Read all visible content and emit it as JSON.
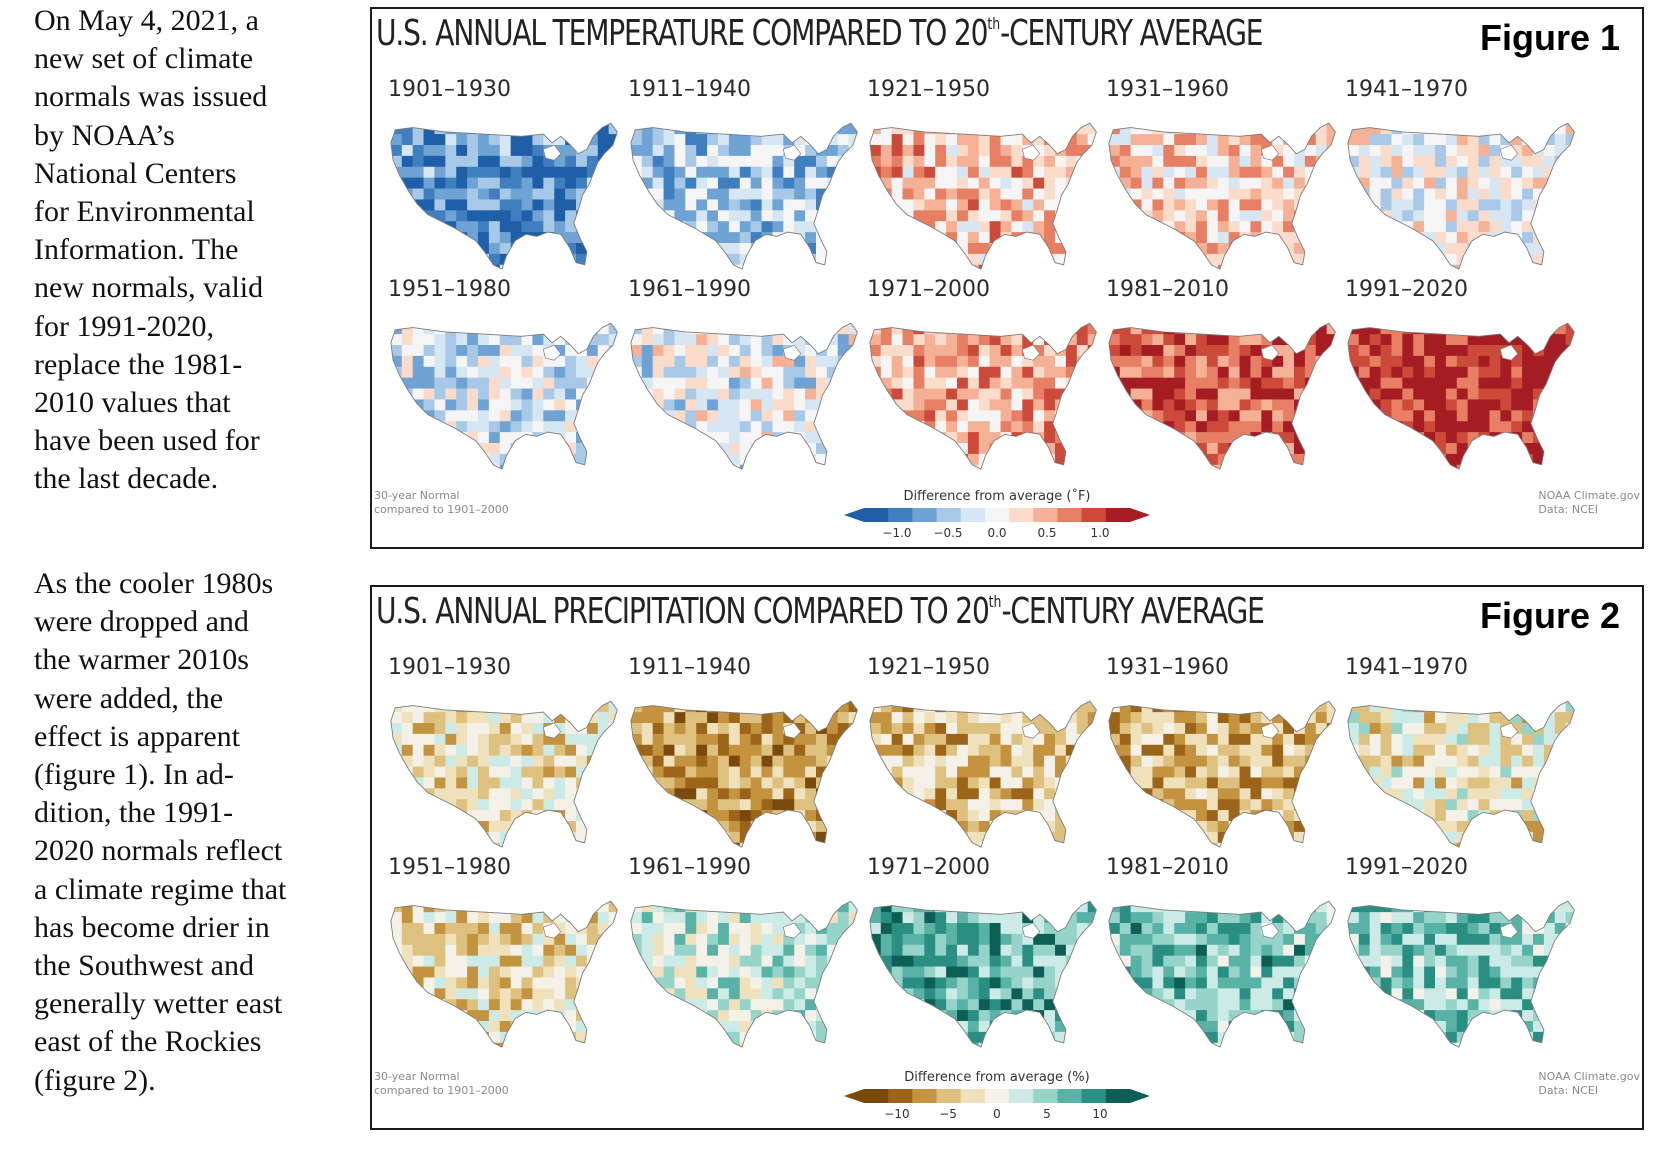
{
  "text_column": {
    "paragraph_1": "On May 4, 2021, a\nnew set of climate\nnormals was issued\nby NOAA’s\nNational Centers\nfor Environmental\nInformation.  The\nnew normals, valid\nfor 1991-2020,\nreplace the 1981-\n2010 values that\nhave been used for\nthe last decade.",
    "paragraph_2": "As the cooler 1980s\nwere dropped and\nthe warmer 2010s\nwere added, the\neffect is apparent\n(figure 1).  In ad-\ndition, the 1991-\n2020 normals reflect\na climate regime that\nhas become drier in\nthe Southwest and\ngenerally wetter east\neast of the Rockies\n(figure 2)."
  },
  "figure1": {
    "title_pre": "U.S. ANNUAL TEMPERATURE COMPARED TO 20",
    "title_sup": "th",
    "title_post": "-CENTURY AVERAGE",
    "label": "Figure 1",
    "note_left_1": "30-year Normal",
    "note_left_2": "compared to 1901–2000",
    "note_right_1": "NOAA Climate.gov",
    "note_right_2": "Data: NCEI",
    "legend_title": "Difference from average (˚F)",
    "legend_ticks": [
      "−1.0",
      "−0.5",
      "0.0",
      "0.5",
      "1.0"
    ],
    "colors": [
      "#1f5fa8",
      "#3f7fbf",
      "#6fa3d4",
      "#a7c8e6",
      "#d6e6f3",
      "#f5f5f5",
      "#fbdccb",
      "#f4b196",
      "#e67f63",
      "#cc4a3a",
      "#a51c22"
    ],
    "maps": [
      {
        "period": "1901–1930",
        "score": -0.7
      },
      {
        "period": "1911–1940",
        "score": -0.35
      },
      {
        "period": "1921–1950",
        "score": 0.3
      },
      {
        "period": "1931–1960",
        "score": 0.25
      },
      {
        "period": "1941–1970",
        "score": -0.05
      },
      {
        "period": "1951–1980",
        "score": -0.2
      },
      {
        "period": "1961–1990",
        "score": -0.1
      },
      {
        "period": "1971–2000",
        "score": 0.4
      },
      {
        "period": "1981–2010",
        "score": 0.75
      },
      {
        "period": "1991–2020",
        "score": 0.95
      }
    ]
  },
  "figure2": {
    "title_pre": "U.S. ANNUAL PRECIPITATION COMPARED TO 20",
    "title_sup": "th",
    "title_post": "-CENTURY AVERAGE",
    "label": "Figure 2",
    "note_left_1": "30-year Normal",
    "note_left_2": "compared to 1901–2000",
    "note_right_1": "NOAA Climate.gov",
    "note_right_2": "Data: NCEI",
    "legend_title": "Difference from average (%)",
    "legend_ticks": [
      "−10",
      "−5",
      "0",
      "5",
      "10"
    ],
    "colors": [
      "#7a4a0c",
      "#9c6418",
      "#c49340",
      "#dfc17f",
      "#efe1bc",
      "#f4f2e8",
      "#cdebe6",
      "#96d3c9",
      "#58b3a6",
      "#2a8f82",
      "#0d5f56"
    ],
    "maps": [
      {
        "period": "1901–1930",
        "score": -0.15
      },
      {
        "period": "1911–1940",
        "score": -0.55
      },
      {
        "period": "1921–1950",
        "score": -0.35
      },
      {
        "period": "1931–1960",
        "score": -0.45
      },
      {
        "period": "1941–1970",
        "score": -0.1
      },
      {
        "period": "1951–1980",
        "score": -0.2
      },
      {
        "period": "1961–1990",
        "score": 0.15
      },
      {
        "period": "1971–2000",
        "score": 0.55
      },
      {
        "period": "1981–2010",
        "score": 0.5
      },
      {
        "period": "1991–2020",
        "score": 0.45
      }
    ]
  }
}
